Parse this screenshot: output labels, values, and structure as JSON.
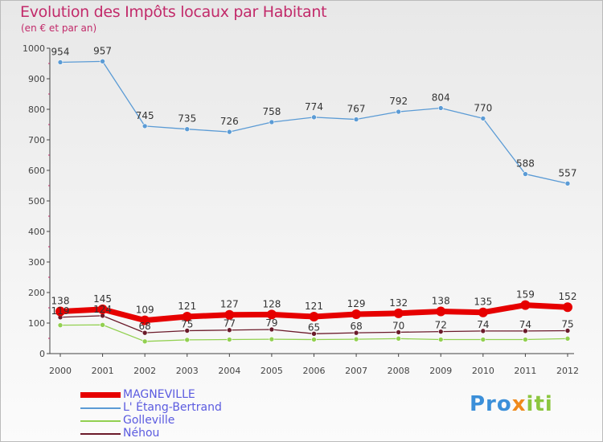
{
  "title": "Evolution des Impôts locaux par Habitant",
  "subtitle": "(en € et par an)",
  "brand": {
    "part1": "Pro",
    "part2": "x",
    "part3": "iti"
  },
  "chart_data": {
    "type": "line",
    "title": "Evolution des Impôts locaux par Habitant",
    "subtitle": "(en € et par an)",
    "xlabel": "",
    "ylabel": "",
    "x": [
      2000,
      2001,
      2002,
      2003,
      2004,
      2005,
      2006,
      2007,
      2008,
      2009,
      2010,
      2011,
      2012
    ],
    "ylim": [
      0,
      1000
    ],
    "yticks": [
      0,
      100,
      200,
      300,
      400,
      500,
      600,
      700,
      800,
      900,
      1000
    ],
    "grid": false,
    "legend_position": "bottom-left",
    "series": [
      {
        "name": "MAGNEVILLE",
        "color": "#e60000",
        "style": "thick",
        "values": [
          138,
          145,
          109,
          121,
          127,
          128,
          121,
          129,
          132,
          138,
          135,
          159,
          152
        ],
        "labels": [
          "138",
          "145",
          "109",
          "121",
          "127",
          "128",
          "121",
          "129",
          "132",
          "138",
          "135",
          "159",
          "152"
        ]
      },
      {
        "name": "L' Étang-Bertrand",
        "color": "#5b9bd5",
        "style": "thin",
        "values": [
          954,
          957,
          745,
          735,
          726,
          758,
          774,
          767,
          792,
          804,
          770,
          588,
          557
        ],
        "labels": [
          "954",
          "957",
          "745",
          "735",
          "726",
          "758",
          "774",
          "767",
          "792",
          "804",
          "770",
          "588",
          "557"
        ]
      },
      {
        "name": "Golleville",
        "color": "#92d050",
        "style": "thin",
        "values": [
          93,
          94,
          40,
          45,
          46,
          47,
          46,
          47,
          49,
          46,
          46,
          46,
          49
        ],
        "labels": [
          "",
          "",
          "",
          "",
          "",
          "",
          "",
          "",
          "",
          "",
          "",
          "",
          ""
        ]
      },
      {
        "name": "Néhou",
        "color": "#6b1a2a",
        "style": "thin",
        "values": [
          119,
          124,
          68,
          75,
          77,
          79,
          65,
          68,
          70,
          72,
          74,
          74,
          75
        ],
        "labels": [
          "119",
          "124",
          "68",
          "75",
          "77",
          "79",
          "65",
          "68",
          "70",
          "72",
          "74",
          "74",
          "75"
        ]
      }
    ]
  }
}
